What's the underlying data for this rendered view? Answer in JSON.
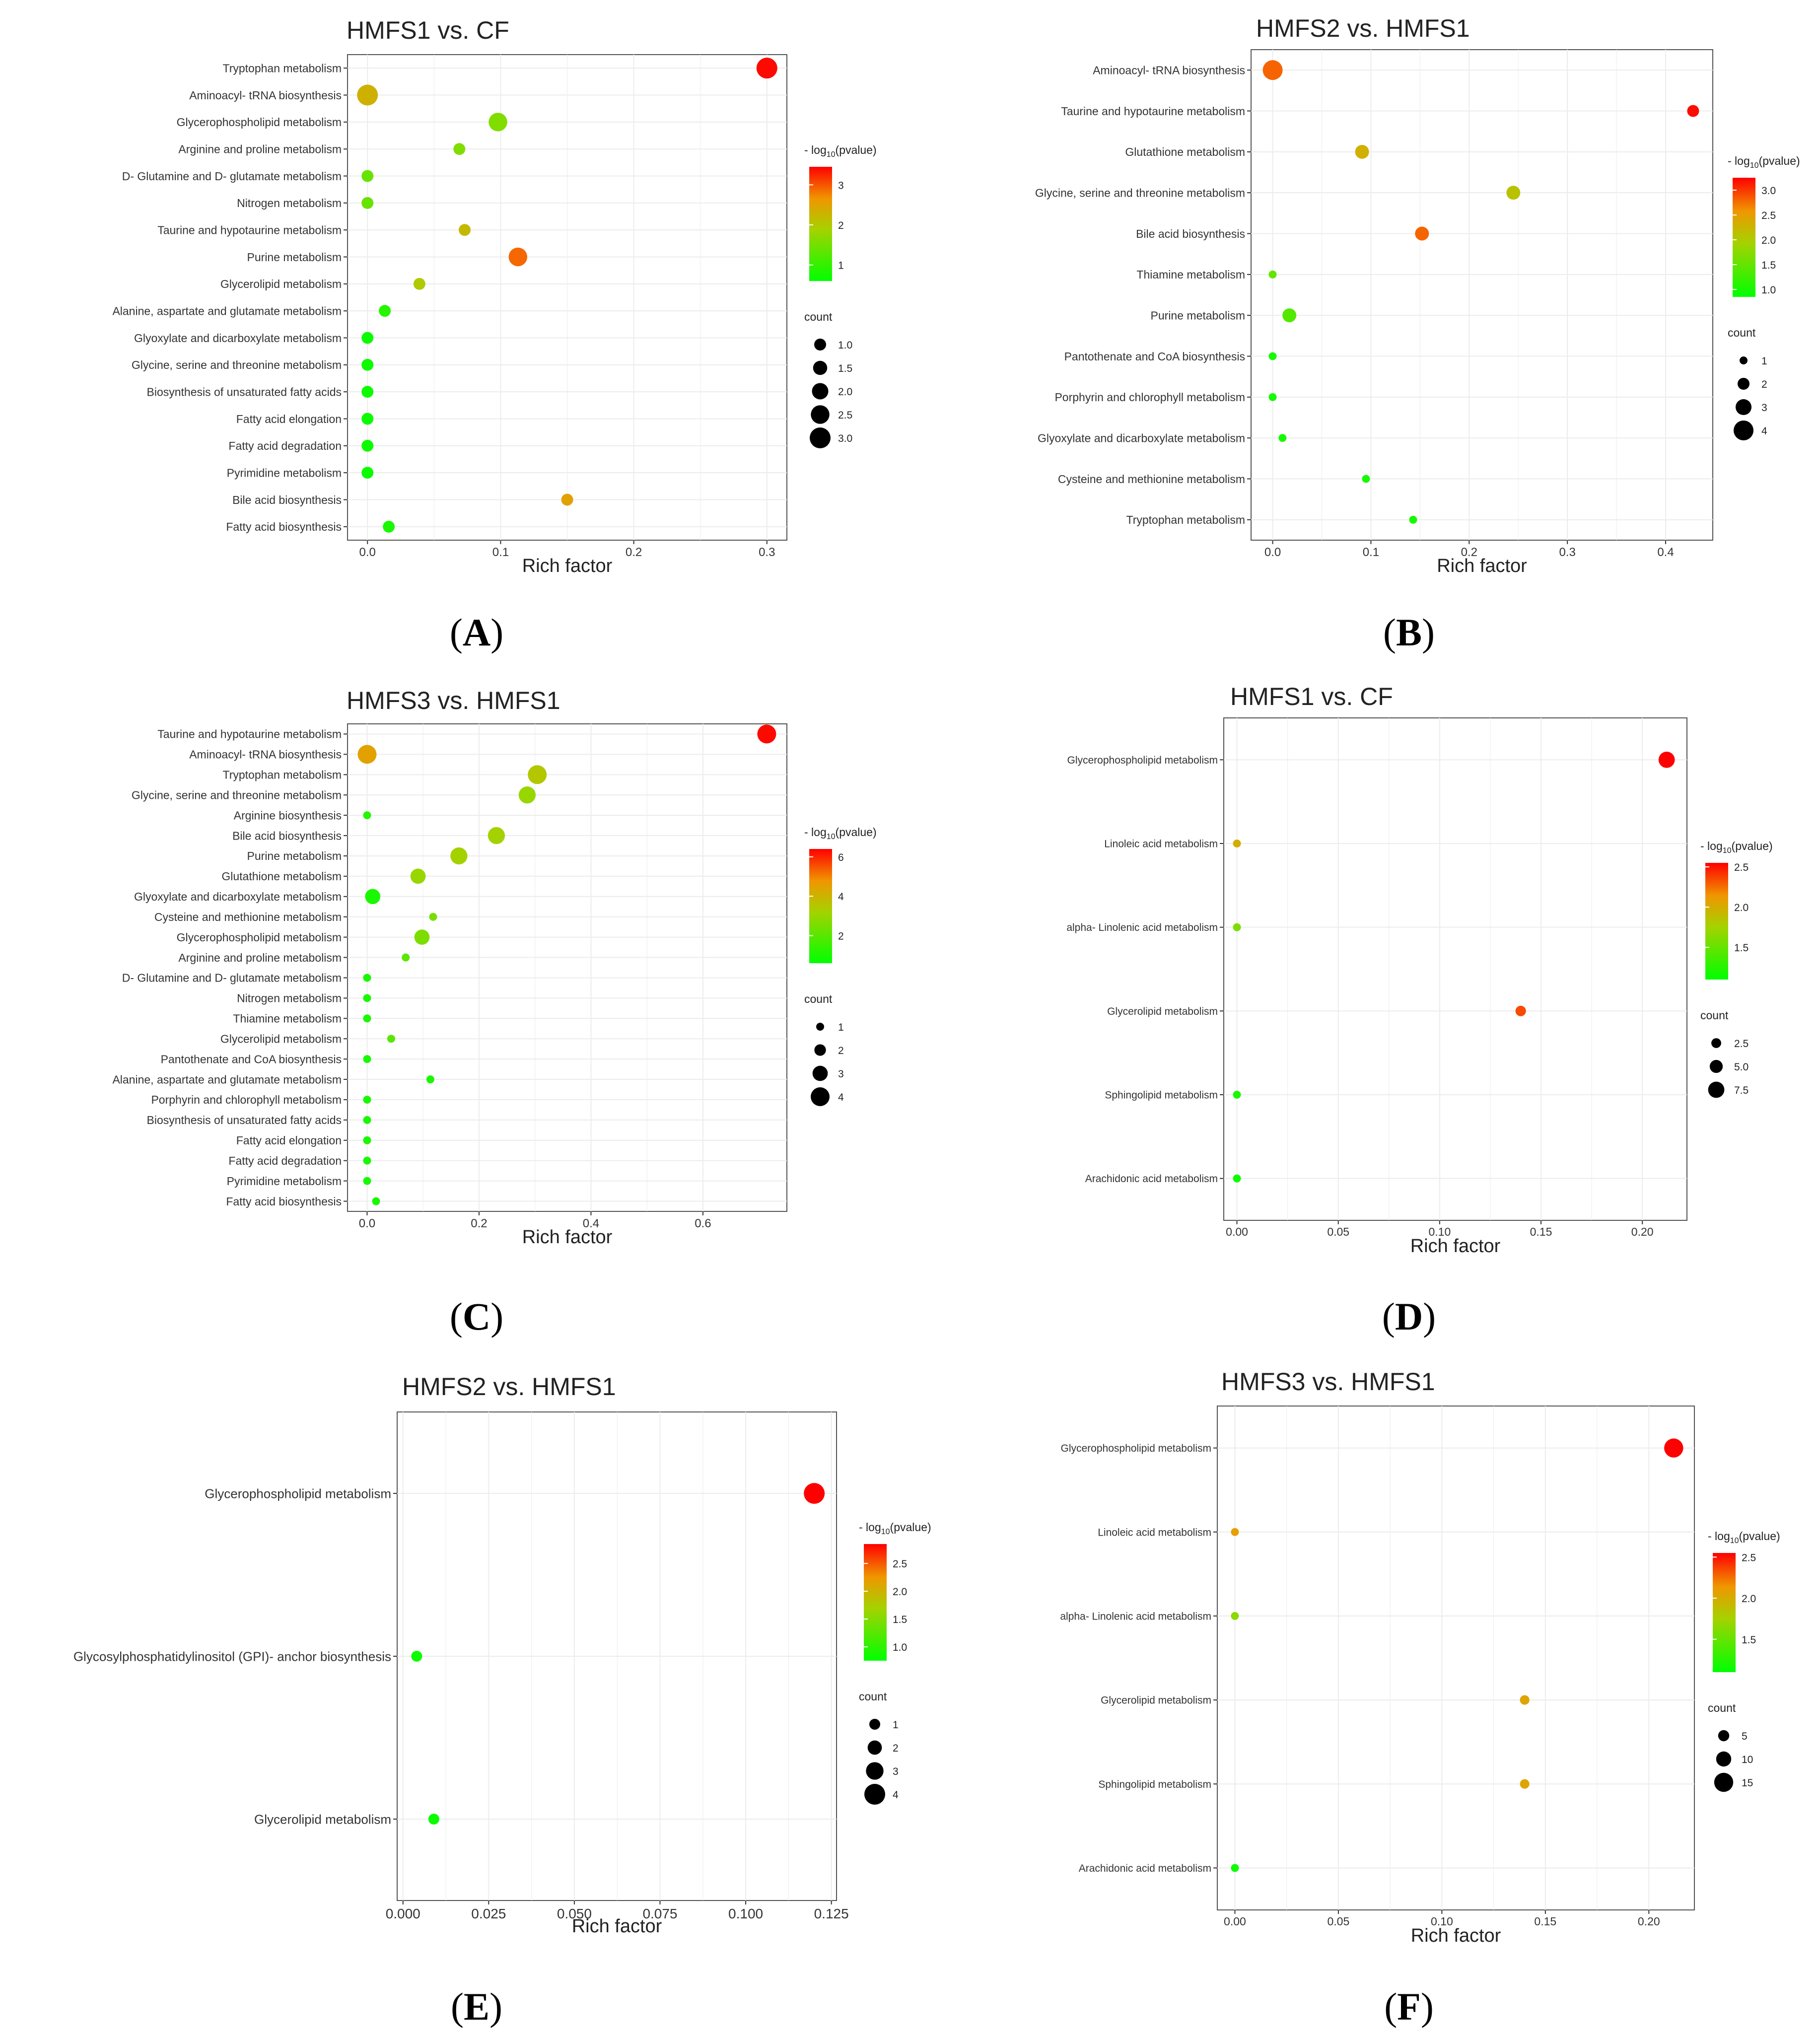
{
  "chart_data": [
    {
      "panel": "A",
      "type": "scatter",
      "title": "HMFS1 vs. CF",
      "xlabel": "Rich factor",
      "xticks": [
        0.0,
        0.1,
        0.2,
        0.3
      ],
      "xtick_labels": [
        "0.0",
        "0.1",
        "0.2",
        "0.3"
      ],
      "xlim": [
        -0.015,
        0.315
      ],
      "color_legend_title": "- log10(pvalue)",
      "color_range": [
        0.6,
        3.45
      ],
      "color_ticks": [
        1,
        2,
        3
      ],
      "color_tick_labels": [
        "1",
        "2",
        "3"
      ],
      "size_legend_title": "count",
      "size_legend": [
        1.0,
        1.5,
        2.0,
        2.5,
        3.0
      ],
      "size_legend_labels": [
        "1.0",
        "1.5",
        "2.0",
        "2.5",
        "3.0"
      ],
      "size_range": [
        1,
        3
      ],
      "points": [
        {
          "pathway": "Tryptophan metabolism",
          "rich_factor": 0.3,
          "neg_log10_p": 3.4,
          "count": 3
        },
        {
          "pathway": "Aminoacyl- tRNA biosynthesis",
          "rich_factor": 0.0,
          "neg_log10_p": 2.3,
          "count": 3
        },
        {
          "pathway": "Glycerophospholipid metabolism",
          "rich_factor": 0.098,
          "neg_log10_p": 1.6,
          "count": 2.5
        },
        {
          "pathway": "Arginine and proline metabolism",
          "rich_factor": 0.069,
          "neg_log10_p": 1.6,
          "count": 1
        },
        {
          "pathway": "D- Glutamine and D- glutamate metabolism",
          "rich_factor": 0.0,
          "neg_log10_p": 1.4,
          "count": 1
        },
        {
          "pathway": "Nitrogen metabolism",
          "rich_factor": 0.0,
          "neg_log10_p": 1.4,
          "count": 1
        },
        {
          "pathway": "Taurine and hypotaurine metabolism",
          "rich_factor": 0.073,
          "neg_log10_p": 2.2,
          "count": 1
        },
        {
          "pathway": "Purine metabolism",
          "rich_factor": 0.113,
          "neg_log10_p": 2.9,
          "count": 2.5
        },
        {
          "pathway": "Glycerolipid metabolism",
          "rich_factor": 0.039,
          "neg_log10_p": 2.0,
          "count": 1
        },
        {
          "pathway": "Alanine, aspartate and glutamate metabolism",
          "rich_factor": 0.013,
          "neg_log10_p": 0.9,
          "count": 1
        },
        {
          "pathway": "Glyoxylate and dicarboxylate metabolism",
          "rich_factor": 0.0,
          "neg_log10_p": 0.7,
          "count": 1
        },
        {
          "pathway": "Glycine, serine and threonine metabolism",
          "rich_factor": 0.0,
          "neg_log10_p": 0.7,
          "count": 1
        },
        {
          "pathway": "Biosynthesis of unsaturated fatty acids",
          "rich_factor": 0.0,
          "neg_log10_p": 0.7,
          "count": 1
        },
        {
          "pathway": "Fatty acid elongation",
          "rich_factor": 0.0,
          "neg_log10_p": 0.7,
          "count": 1
        },
        {
          "pathway": "Fatty acid degradation",
          "rich_factor": 0.0,
          "neg_log10_p": 0.7,
          "count": 1
        },
        {
          "pathway": "Pyrimidine metabolism",
          "rich_factor": 0.0,
          "neg_log10_p": 0.7,
          "count": 1
        },
        {
          "pathway": "Bile acid biosynthesis",
          "rich_factor": 0.15,
          "neg_log10_p": 2.5,
          "count": 1
        },
        {
          "pathway": "Fatty acid biosynthesis",
          "rich_factor": 0.016,
          "neg_log10_p": 0.8,
          "count": 1
        }
      ]
    },
    {
      "panel": "B",
      "type": "scatter",
      "title": "HMFS2 vs. HMFS1",
      "xlabel": "Rich factor",
      "xticks": [
        0.0,
        0.1,
        0.2,
        0.3,
        0.4
      ],
      "xtick_labels": [
        "0.0",
        "0.1",
        "0.2",
        "0.3",
        "0.4"
      ],
      "xlim": [
        -0.022,
        0.448
      ],
      "color_legend_title": "- log10(pvalue)",
      "color_range": [
        0.85,
        3.25
      ],
      "color_ticks": [
        1.0,
        1.5,
        2.0,
        2.5,
        3.0
      ],
      "color_tick_labels": [
        "1.0",
        "1.5",
        "2.0",
        "2.5",
        "3.0"
      ],
      "size_legend_title": "count",
      "size_legend": [
        1,
        2,
        3,
        4
      ],
      "size_legend_labels": [
        "1",
        "2",
        "3",
        "4"
      ],
      "size_range": [
        1,
        4
      ],
      "points": [
        {
          "pathway": "Aminoacyl- tRNA biosynthesis",
          "rich_factor": 0.0,
          "neg_log10_p": 2.8,
          "count": 4
        },
        {
          "pathway": "Taurine and hypotaurine metabolism",
          "rich_factor": 0.428,
          "neg_log10_p": 3.2,
          "count": 2
        },
        {
          "pathway": "Glutathione metabolism",
          "rich_factor": 0.091,
          "neg_log10_p": 2.3,
          "count": 2.5
        },
        {
          "pathway": "Glycine, serine and threonine metabolism",
          "rich_factor": 0.245,
          "neg_log10_p": 2.1,
          "count": 2.5
        },
        {
          "pathway": "Bile acid biosynthesis",
          "rich_factor": 0.152,
          "neg_log10_p": 2.8,
          "count": 2.5
        },
        {
          "pathway": "Thiamine metabolism",
          "rich_factor": 0.0,
          "neg_log10_p": 1.5,
          "count": 1
        },
        {
          "pathway": "Purine metabolism",
          "rich_factor": 0.017,
          "neg_log10_p": 1.4,
          "count": 2.5
        },
        {
          "pathway": "Pantothenate and CoA biosynthesis",
          "rich_factor": 0.0,
          "neg_log10_p": 1.0,
          "count": 1
        },
        {
          "pathway": "Porphyrin and chlorophyll metabolism",
          "rich_factor": 0.0,
          "neg_log10_p": 1.0,
          "count": 1
        },
        {
          "pathway": "Glyoxylate and dicarboxylate metabolism",
          "rich_factor": 0.01,
          "neg_log10_p": 1.0,
          "count": 1
        },
        {
          "pathway": "Cysteine and methionine metabolism",
          "rich_factor": 0.095,
          "neg_log10_p": 1.0,
          "count": 1
        },
        {
          "pathway": "Tryptophan metabolism",
          "rich_factor": 0.143,
          "neg_log10_p": 1.0,
          "count": 1
        }
      ]
    },
    {
      "panel": "C",
      "type": "scatter",
      "title": "HMFS3 vs. HMFS1",
      "xlabel": "Rich factor",
      "xticks": [
        0.0,
        0.2,
        0.4,
        0.6
      ],
      "xtick_labels": [
        "0.0",
        "0.2",
        "0.4",
        "0.6"
      ],
      "xlim": [
        -0.035,
        0.75
      ],
      "color_legend_title": "- log10(pvalue)",
      "color_range": [
        0.6,
        6.4
      ],
      "color_ticks": [
        2,
        4,
        6
      ],
      "color_tick_labels": [
        "2",
        "4",
        "6"
      ],
      "size_legend_title": "count",
      "size_legend": [
        1,
        2,
        3,
        4
      ],
      "size_legend_labels": [
        "1",
        "2",
        "3",
        "4"
      ],
      "size_range": [
        1,
        4
      ],
      "points": [
        {
          "pathway": "Taurine and hypotaurine metabolism",
          "rich_factor": 0.714,
          "neg_log10_p": 6.3,
          "count": 4
        },
        {
          "pathway": "Aminoacyl- tRNA biosynthesis",
          "rich_factor": 0.0,
          "neg_log10_p": 4.5,
          "count": 4
        },
        {
          "pathway": "Tryptophan metabolism",
          "rich_factor": 0.304,
          "neg_log10_p": 3.5,
          "count": 4
        },
        {
          "pathway": "Glycine, serine and threonine metabolism",
          "rich_factor": 0.286,
          "neg_log10_p": 3.0,
          "count": 3.5
        },
        {
          "pathway": "Arginine biosynthesis",
          "rich_factor": 0.0,
          "neg_log10_p": 1.2,
          "count": 1
        },
        {
          "pathway": "Bile acid biosynthesis",
          "rich_factor": 0.231,
          "neg_log10_p": 3.2,
          "count": 3.5
        },
        {
          "pathway": "Purine metabolism",
          "rich_factor": 0.164,
          "neg_log10_p": 3.2,
          "count": 3.5
        },
        {
          "pathway": "Glutathione metabolism",
          "rich_factor": 0.091,
          "neg_log10_p": 3.0,
          "count": 3
        },
        {
          "pathway": "Glyoxylate and dicarboxylate metabolism",
          "rich_factor": 0.01,
          "neg_log10_p": 1.0,
          "count": 3
        },
        {
          "pathway": "Cysteine and methionine metabolism",
          "rich_factor": 0.118,
          "neg_log10_p": 2.5,
          "count": 1
        },
        {
          "pathway": "Glycerophospholipid metabolism",
          "rich_factor": 0.098,
          "neg_log10_p": 2.6,
          "count": 3
        },
        {
          "pathway": "Arginine and proline metabolism",
          "rich_factor": 0.069,
          "neg_log10_p": 2.0,
          "count": 1
        },
        {
          "pathway": "D- Glutamine and D- glutamate metabolism",
          "rich_factor": 0.0,
          "neg_log10_p": 1.0,
          "count": 1
        },
        {
          "pathway": "Nitrogen metabolism",
          "rich_factor": 0.0,
          "neg_log10_p": 1.0,
          "count": 1
        },
        {
          "pathway": "Thiamine metabolism",
          "rich_factor": 0.0,
          "neg_log10_p": 1.0,
          "count": 1
        },
        {
          "pathway": "Glycerolipid metabolism",
          "rich_factor": 0.043,
          "neg_log10_p": 2.0,
          "count": 1
        },
        {
          "pathway": "Pantothenate and CoA biosynthesis",
          "rich_factor": 0.0,
          "neg_log10_p": 1.0,
          "count": 1
        },
        {
          "pathway": "Alanine, aspartate and glutamate metabolism",
          "rich_factor": 0.113,
          "neg_log10_p": 1.0,
          "count": 1
        },
        {
          "pathway": "Porphyrin and chlorophyll metabolism",
          "rich_factor": 0.0,
          "neg_log10_p": 1.0,
          "count": 1
        },
        {
          "pathway": "Biosynthesis of unsaturated fatty acids",
          "rich_factor": 0.0,
          "neg_log10_p": 1.0,
          "count": 1
        },
        {
          "pathway": "Fatty acid elongation",
          "rich_factor": 0.0,
          "neg_log10_p": 1.0,
          "count": 1
        },
        {
          "pathway": "Fatty acid degradation",
          "rich_factor": 0.0,
          "neg_log10_p": 1.0,
          "count": 1
        },
        {
          "pathway": "Pyrimidine metabolism",
          "rich_factor": 0.0,
          "neg_log10_p": 1.0,
          "count": 1
        },
        {
          "pathway": "Fatty acid biosynthesis",
          "rich_factor": 0.016,
          "neg_log10_p": 1.0,
          "count": 1
        }
      ]
    },
    {
      "panel": "D",
      "type": "scatter",
      "title": "HMFS1 vs. CF",
      "xlabel": "Rich factor",
      "xticks": [
        0.0,
        0.05,
        0.1,
        0.15,
        0.2
      ],
      "xtick_labels": [
        "0.00",
        "0.05",
        "0.10",
        "0.15",
        "0.20"
      ],
      "xlim": [
        -0.0065,
        0.222
      ],
      "color_legend_title": "- log10(pvalue)",
      "color_range": [
        1.1,
        2.55
      ],
      "color_ticks": [
        1.5,
        2.0,
        2.5
      ],
      "color_tick_labels": [
        "1.5",
        "2.0",
        "2.5"
      ],
      "size_legend_title": "count",
      "size_legend": [
        2.5,
        5.0,
        7.5
      ],
      "size_legend_labels": [
        "2.5",
        "5.0",
        "7.5"
      ],
      "size_range": [
        1,
        8
      ],
      "points": [
        {
          "pathway": "Glycerophospholipid metabolism",
          "rich_factor": 0.212,
          "neg_log10_p": 2.55,
          "count": 7.5
        },
        {
          "pathway": "Linoleic acid metabolism",
          "rich_factor": 0.0,
          "neg_log10_p": 2.0,
          "count": 1
        },
        {
          "pathway": "alpha- Linolenic acid metabolism",
          "rich_factor": 0.0,
          "neg_log10_p": 1.6,
          "count": 1
        },
        {
          "pathway": "Glycerolipid metabolism",
          "rich_factor": 0.14,
          "neg_log10_p": 2.35,
          "count": 3
        },
        {
          "pathway": "Sphingolipid metabolism",
          "rich_factor": 0.0,
          "neg_log10_p": 1.2,
          "count": 1
        },
        {
          "pathway": "Arachidonic acid metabolism",
          "rich_factor": 0.0,
          "neg_log10_p": 1.15,
          "count": 1
        }
      ]
    },
    {
      "panel": "E",
      "type": "scatter",
      "title": "HMFS2 vs. HMFS1",
      "xlabel": "Rich factor",
      "xticks": [
        0.0,
        0.025,
        0.05,
        0.075,
        0.1,
        0.125
      ],
      "xtick_labels": [
        "0.000",
        "0.025",
        "0.050",
        "0.075",
        "0.100",
        "0.125"
      ],
      "xlim": [
        -0.0017,
        0.1265
      ],
      "color_legend_title": "- log10(pvalue)",
      "color_range": [
        0.75,
        2.85
      ],
      "color_ticks": [
        1.0,
        1.5,
        2.0,
        2.5
      ],
      "color_tick_labels": [
        "1.0",
        "1.5",
        "2.0",
        "2.5"
      ],
      "size_legend_title": "count",
      "size_legend": [
        1,
        2,
        3,
        4
      ],
      "size_legend_labels": [
        "1",
        "2",
        "3",
        "4"
      ],
      "size_range": [
        1,
        4
      ],
      "points": [
        {
          "pathway": "Glycerophospholipid metabolism",
          "rich_factor": 0.12,
          "neg_log10_p": 2.85,
          "count": 4
        },
        {
          "pathway": "Glycosylphosphatidylinositol (GPI)- anchor biosynthesis",
          "rich_factor": 0.004,
          "neg_log10_p": 0.8,
          "count": 1
        },
        {
          "pathway": "Glycerolipid metabolism",
          "rich_factor": 0.009,
          "neg_log10_p": 0.8,
          "count": 1
        }
      ]
    },
    {
      "panel": "F",
      "type": "scatter",
      "title": "HMFS3 vs. HMFS1",
      "xlabel": "Rich factor",
      "xticks": [
        0.0,
        0.05,
        0.1,
        0.15,
        0.2
      ],
      "xtick_labels": [
        "0.00",
        "0.05",
        "0.10",
        "0.15",
        "0.20"
      ],
      "xlim": [
        -0.0085,
        0.222
      ],
      "color_legend_title": "- log10(pvalue)",
      "color_range": [
        1.1,
        2.55
      ],
      "color_ticks": [
        1.5,
        2.0,
        2.5
      ],
      "color_tick_labels": [
        "1.5",
        "2.0",
        "2.5"
      ],
      "size_legend_title": "count",
      "size_legend": [
        5,
        10,
        15
      ],
      "size_legend_labels": [
        "5",
        "10",
        "15"
      ],
      "size_range": [
        1,
        16
      ],
      "points": [
        {
          "pathway": "Glycerophospholipid metabolism",
          "rich_factor": 0.212,
          "neg_log10_p": 2.55,
          "count": 15
        },
        {
          "pathway": "Linoleic acid metabolism",
          "rich_factor": 0.0,
          "neg_log10_p": 2.1,
          "count": 1
        },
        {
          "pathway": "alpha- Linolenic acid metabolism",
          "rich_factor": 0.0,
          "neg_log10_p": 1.65,
          "count": 1
        },
        {
          "pathway": "Glycerolipid metabolism",
          "rich_factor": 0.14,
          "neg_log10_p": 2.05,
          "count": 3
        },
        {
          "pathway": "Sphingolipid metabolism",
          "rich_factor": 0.14,
          "neg_log10_p": 2.05,
          "count": 3
        },
        {
          "pathway": "Arachidonic acid metabolism",
          "rich_factor": 0.0,
          "neg_log10_p": 1.15,
          "count": 1
        }
      ]
    }
  ],
  "panel_labels": [
    "(A)",
    "(B)",
    "(C)",
    "(D)",
    "(E)",
    "(F)"
  ]
}
